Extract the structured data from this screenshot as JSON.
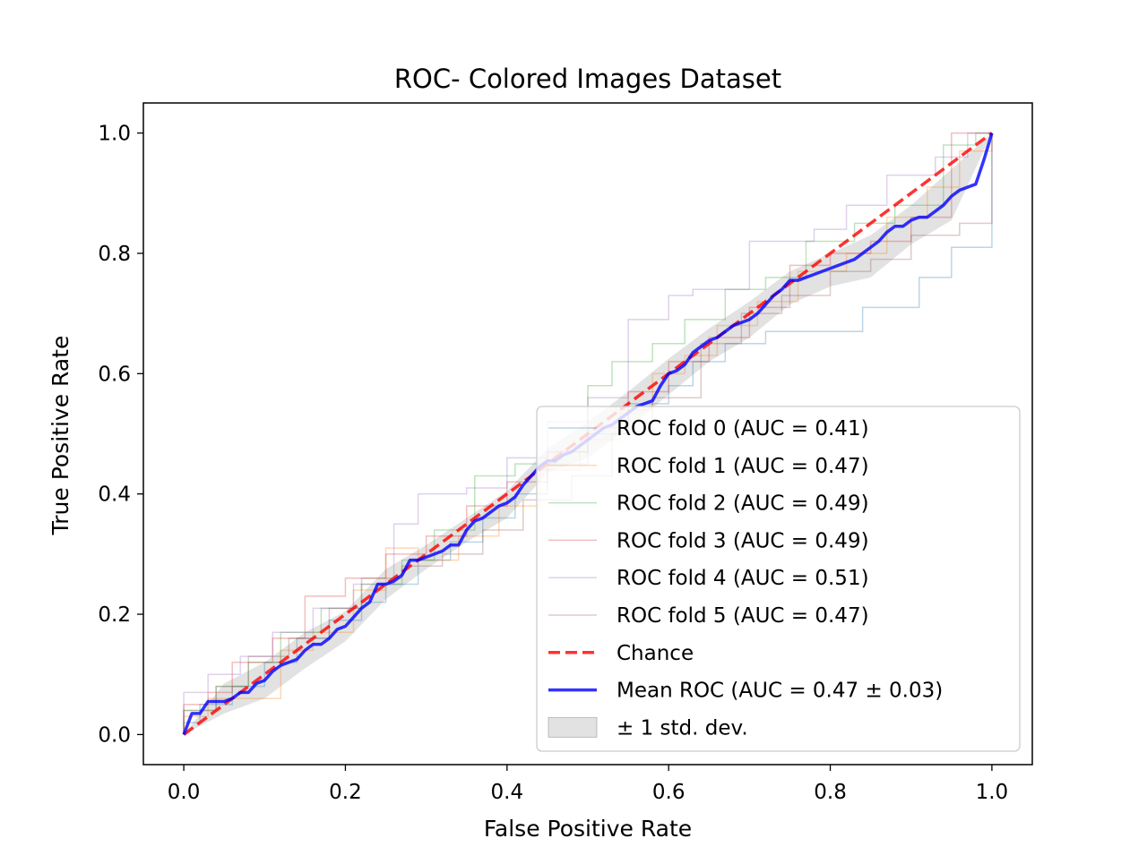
{
  "chart_data": {
    "type": "line",
    "title": "ROC- Colored Images Dataset",
    "xlabel": "False Positive Rate",
    "ylabel": "True Positive Rate",
    "xlim": [
      -0.05,
      1.05
    ],
    "ylim": [
      -0.05,
      1.05
    ],
    "xticks": [
      0.0,
      0.2,
      0.4,
      0.6,
      0.8,
      1.0
    ],
    "yticks": [
      0.0,
      0.2,
      0.4,
      0.6,
      0.8,
      1.0
    ],
    "xtick_labels": [
      "0.0",
      "0.2",
      "0.4",
      "0.6",
      "0.8",
      "1.0"
    ],
    "ytick_labels": [
      "0.0",
      "0.2",
      "0.4",
      "0.6",
      "0.8",
      "1.0"
    ],
    "grid": false,
    "legend_position": "lower-right",
    "series": [
      {
        "name": "ROC fold 0 (AUC = 0.41)",
        "color": "#1f77b4",
        "style": "step",
        "x": [
          0.0,
          0.0,
          0.02,
          0.02,
          0.06,
          0.06,
          0.1,
          0.1,
          0.14,
          0.14,
          0.18,
          0.18,
          0.22,
          0.22,
          0.25,
          0.25,
          0.29,
          0.29,
          0.33,
          0.33,
          0.37,
          0.37,
          0.41,
          0.41,
          0.45,
          0.45,
          0.5,
          0.5,
          0.55,
          0.55,
          0.6,
          0.6,
          0.63,
          0.63,
          0.67,
          0.67,
          0.72,
          0.72,
          0.78,
          0.78,
          0.84,
          0.84,
          0.91,
          0.91,
          0.95,
          0.95,
          1.0,
          1.0
        ],
        "y": [
          0.0,
          0.02,
          0.02,
          0.05,
          0.05,
          0.08,
          0.08,
          0.12,
          0.12,
          0.16,
          0.16,
          0.19,
          0.19,
          0.22,
          0.22,
          0.25,
          0.25,
          0.29,
          0.29,
          0.32,
          0.32,
          0.36,
          0.36,
          0.4,
          0.4,
          0.45,
          0.45,
          0.5,
          0.5,
          0.55,
          0.55,
          0.58,
          0.58,
          0.62,
          0.62,
          0.65,
          0.65,
          0.67,
          0.67,
          0.67,
          0.67,
          0.71,
          0.71,
          0.76,
          0.76,
          0.81,
          0.81,
          1.0
        ]
      },
      {
        "name": "ROC fold 1 (AUC = 0.47)",
        "color": "#ff7f0e",
        "style": "step",
        "x": [
          0.0,
          0.0,
          0.03,
          0.03,
          0.07,
          0.07,
          0.12,
          0.12,
          0.16,
          0.16,
          0.21,
          0.21,
          0.25,
          0.25,
          0.29,
          0.29,
          0.34,
          0.34,
          0.39,
          0.39,
          0.44,
          0.44,
          0.49,
          0.49,
          0.54,
          0.54,
          0.58,
          0.58,
          0.62,
          0.62,
          0.66,
          0.66,
          0.71,
          0.71,
          0.76,
          0.76,
          0.82,
          0.82,
          0.87,
          0.87,
          0.92,
          0.92,
          0.96,
          0.96,
          1.0,
          1.0
        ],
        "y": [
          0.0,
          0.03,
          0.03,
          0.06,
          0.06,
          0.06,
          0.06,
          0.14,
          0.14,
          0.17,
          0.17,
          0.24,
          0.24,
          0.31,
          0.31,
          0.29,
          0.29,
          0.33,
          0.33,
          0.38,
          0.38,
          0.44,
          0.44,
          0.49,
          0.49,
          0.54,
          0.54,
          0.6,
          0.6,
          0.63,
          0.63,
          0.68,
          0.68,
          0.72,
          0.72,
          0.77,
          0.77,
          0.8,
          0.8,
          0.86,
          0.86,
          0.91,
          0.91,
          0.97,
          0.97,
          1.0
        ]
      },
      {
        "name": "ROC fold 2 (AUC = 0.49)",
        "color": "#2ca02c",
        "style": "step",
        "x": [
          0.0,
          0.0,
          0.04,
          0.04,
          0.08,
          0.08,
          0.12,
          0.12,
          0.17,
          0.17,
          0.22,
          0.22,
          0.27,
          0.27,
          0.31,
          0.31,
          0.36,
          0.36,
          0.41,
          0.41,
          0.46,
          0.46,
          0.5,
          0.5,
          0.53,
          0.53,
          0.58,
          0.58,
          0.62,
          0.62,
          0.67,
          0.67,
          0.72,
          0.72,
          0.77,
          0.77,
          0.83,
          0.83,
          0.88,
          0.88,
          0.94,
          0.94,
          0.98,
          0.98,
          1.0
        ],
        "y": [
          0.0,
          0.04,
          0.04,
          0.08,
          0.08,
          0.12,
          0.12,
          0.17,
          0.17,
          0.21,
          0.21,
          0.25,
          0.25,
          0.29,
          0.29,
          0.34,
          0.34,
          0.43,
          0.43,
          0.45,
          0.45,
          0.47,
          0.47,
          0.58,
          0.58,
          0.62,
          0.62,
          0.65,
          0.65,
          0.69,
          0.69,
          0.74,
          0.74,
          0.76,
          0.76,
          0.82,
          0.82,
          0.85,
          0.85,
          0.88,
          0.88,
          0.98,
          0.98,
          1.0,
          1.0
        ]
      },
      {
        "name": "ROC fold 3 (AUC = 0.49)",
        "color": "#d62728",
        "style": "step",
        "x": [
          0.0,
          0.0,
          0.03,
          0.03,
          0.06,
          0.06,
          0.11,
          0.11,
          0.15,
          0.15,
          0.2,
          0.2,
          0.25,
          0.25,
          0.3,
          0.3,
          0.35,
          0.35,
          0.4,
          0.4,
          0.45,
          0.45,
          0.5,
          0.5,
          0.55,
          0.55,
          0.6,
          0.6,
          0.65,
          0.65,
          0.7,
          0.7,
          0.75,
          0.75,
          0.8,
          0.8,
          0.85,
          0.85,
          0.9,
          0.9,
          0.95,
          0.95,
          0.98,
          0.98,
          1.0
        ],
        "y": [
          0.0,
          0.05,
          0.05,
          0.07,
          0.07,
          0.12,
          0.12,
          0.16,
          0.16,
          0.23,
          0.23,
          0.26,
          0.26,
          0.3,
          0.3,
          0.33,
          0.33,
          0.38,
          0.38,
          0.42,
          0.42,
          0.47,
          0.47,
          0.51,
          0.51,
          0.57,
          0.57,
          0.62,
          0.62,
          0.66,
          0.66,
          0.71,
          0.71,
          0.78,
          0.78,
          0.8,
          0.8,
          0.82,
          0.82,
          0.86,
          0.86,
          1.0,
          1.0,
          1.0,
          1.0
        ]
      },
      {
        "name": "ROC fold 4 (AUC = 0.51)",
        "color": "#9467bd",
        "style": "step",
        "x": [
          0.0,
          0.0,
          0.03,
          0.03,
          0.07,
          0.07,
          0.11,
          0.11,
          0.16,
          0.16,
          0.21,
          0.21,
          0.26,
          0.26,
          0.29,
          0.29,
          0.35,
          0.35,
          0.4,
          0.4,
          0.45,
          0.45,
          0.5,
          0.5,
          0.55,
          0.55,
          0.6,
          0.6,
          0.63,
          0.63,
          0.7,
          0.7,
          0.78,
          0.78,
          0.82,
          0.82,
          0.87,
          0.87,
          0.93,
          0.93,
          0.97,
          0.97,
          1.0
        ],
        "y": [
          0.0,
          0.07,
          0.07,
          0.1,
          0.1,
          0.13,
          0.13,
          0.17,
          0.17,
          0.21,
          0.21,
          0.25,
          0.25,
          0.35,
          0.35,
          0.4,
          0.4,
          0.41,
          0.41,
          0.46,
          0.46,
          0.52,
          0.52,
          0.56,
          0.56,
          0.69,
          0.69,
          0.73,
          0.73,
          0.74,
          0.74,
          0.82,
          0.82,
          0.84,
          0.84,
          0.88,
          0.88,
          0.93,
          0.93,
          0.96,
          0.96,
          1.0,
          1.0
        ]
      },
      {
        "name": "ROC fold 5 (AUC = 0.47)",
        "color": "#8c564b",
        "style": "step",
        "x": [
          0.0,
          0.0,
          0.04,
          0.04,
          0.08,
          0.08,
          0.13,
          0.13,
          0.18,
          0.18,
          0.22,
          0.22,
          0.27,
          0.27,
          0.32,
          0.32,
          0.37,
          0.37,
          0.42,
          0.42,
          0.48,
          0.48,
          0.53,
          0.53,
          0.58,
          0.58,
          0.64,
          0.64,
          0.69,
          0.69,
          0.74,
          0.74,
          0.8,
          0.8,
          0.85,
          0.85,
          0.9,
          0.9,
          0.96,
          0.96,
          1.0,
          1.0
        ],
        "y": [
          0.0,
          0.04,
          0.04,
          0.08,
          0.08,
          0.13,
          0.13,
          0.16,
          0.16,
          0.21,
          0.21,
          0.26,
          0.26,
          0.28,
          0.28,
          0.3,
          0.3,
          0.34,
          0.34,
          0.39,
          0.39,
          0.43,
          0.43,
          0.5,
          0.5,
          0.56,
          0.56,
          0.65,
          0.65,
          0.7,
          0.7,
          0.73,
          0.73,
          0.77,
          0.77,
          0.79,
          0.79,
          0.83,
          0.83,
          0.85,
          0.85,
          1.0
        ]
      },
      {
        "name": "Chance",
        "color": "#ff0000",
        "style": "dashed",
        "x": [
          0.0,
          1.0
        ],
        "y": [
          0.0,
          1.0
        ]
      },
      {
        "name": "Mean ROC (AUC = 0.47 ± 0.03)",
        "color": "#0000ff",
        "style": "solid",
        "x": [
          0.0,
          0.01,
          0.02,
          0.03,
          0.04,
          0.05,
          0.06,
          0.07,
          0.08,
          0.09,
          0.1,
          0.11,
          0.12,
          0.13,
          0.14,
          0.15,
          0.16,
          0.17,
          0.18,
          0.19,
          0.2,
          0.21,
          0.22,
          0.23,
          0.24,
          0.25,
          0.26,
          0.27,
          0.28,
          0.29,
          0.3,
          0.31,
          0.32,
          0.33,
          0.34,
          0.35,
          0.36,
          0.37,
          0.38,
          0.39,
          0.4,
          0.41,
          0.42,
          0.43,
          0.44,
          0.45,
          0.46,
          0.47,
          0.48,
          0.49,
          0.5,
          0.51,
          0.52,
          0.53,
          0.54,
          0.55,
          0.56,
          0.57,
          0.58,
          0.59,
          0.6,
          0.61,
          0.62,
          0.63,
          0.64,
          0.65,
          0.66,
          0.67,
          0.68,
          0.69,
          0.7,
          0.71,
          0.72,
          0.73,
          0.74,
          0.75,
          0.76,
          0.77,
          0.78,
          0.79,
          0.8,
          0.81,
          0.82,
          0.83,
          0.84,
          0.85,
          0.86,
          0.87,
          0.88,
          0.89,
          0.9,
          0.91,
          0.92,
          0.93,
          0.94,
          0.95,
          0.96,
          0.97,
          0.98,
          0.99,
          1.0
        ],
        "y": [
          0.0,
          0.035,
          0.035,
          0.055,
          0.055,
          0.055,
          0.06,
          0.07,
          0.07,
          0.085,
          0.09,
          0.105,
          0.115,
          0.12,
          0.125,
          0.14,
          0.15,
          0.15,
          0.16,
          0.175,
          0.18,
          0.195,
          0.21,
          0.22,
          0.25,
          0.25,
          0.255,
          0.265,
          0.29,
          0.29,
          0.295,
          0.3,
          0.305,
          0.315,
          0.315,
          0.34,
          0.355,
          0.36,
          0.37,
          0.38,
          0.385,
          0.395,
          0.415,
          0.43,
          0.445,
          0.455,
          0.455,
          0.465,
          0.47,
          0.48,
          0.49,
          0.5,
          0.51,
          0.515,
          0.525,
          0.535,
          0.545,
          0.55,
          0.555,
          0.58,
          0.6,
          0.605,
          0.615,
          0.635,
          0.645,
          0.655,
          0.66,
          0.67,
          0.68,
          0.685,
          0.69,
          0.7,
          0.715,
          0.73,
          0.74,
          0.755,
          0.755,
          0.76,
          0.765,
          0.77,
          0.775,
          0.78,
          0.785,
          0.79,
          0.8,
          0.81,
          0.82,
          0.835,
          0.845,
          0.845,
          0.855,
          0.86,
          0.86,
          0.87,
          0.88,
          0.895,
          0.905,
          0.91,
          0.915,
          0.955,
          1.0
        ]
      }
    ],
    "std_band": {
      "name": "± 1 std. dev.",
      "color": "#bfbfbf",
      "x": [
        0.0,
        0.05,
        0.1,
        0.15,
        0.2,
        0.25,
        0.3,
        0.35,
        0.4,
        0.45,
        0.5,
        0.55,
        0.6,
        0.65,
        0.7,
        0.75,
        0.8,
        0.85,
        0.9,
        0.95,
        1.0
      ],
      "upper": [
        0.0,
        0.085,
        0.12,
        0.17,
        0.205,
        0.275,
        0.315,
        0.36,
        0.405,
        0.475,
        0.52,
        0.57,
        0.625,
        0.675,
        0.72,
        0.77,
        0.8,
        0.83,
        0.88,
        0.94,
        1.0
      ],
      "lower": [
        0.0,
        0.035,
        0.06,
        0.11,
        0.155,
        0.225,
        0.275,
        0.32,
        0.36,
        0.435,
        0.46,
        0.51,
        0.565,
        0.62,
        0.66,
        0.715,
        0.745,
        0.76,
        0.815,
        0.855,
        1.0
      ]
    }
  }
}
